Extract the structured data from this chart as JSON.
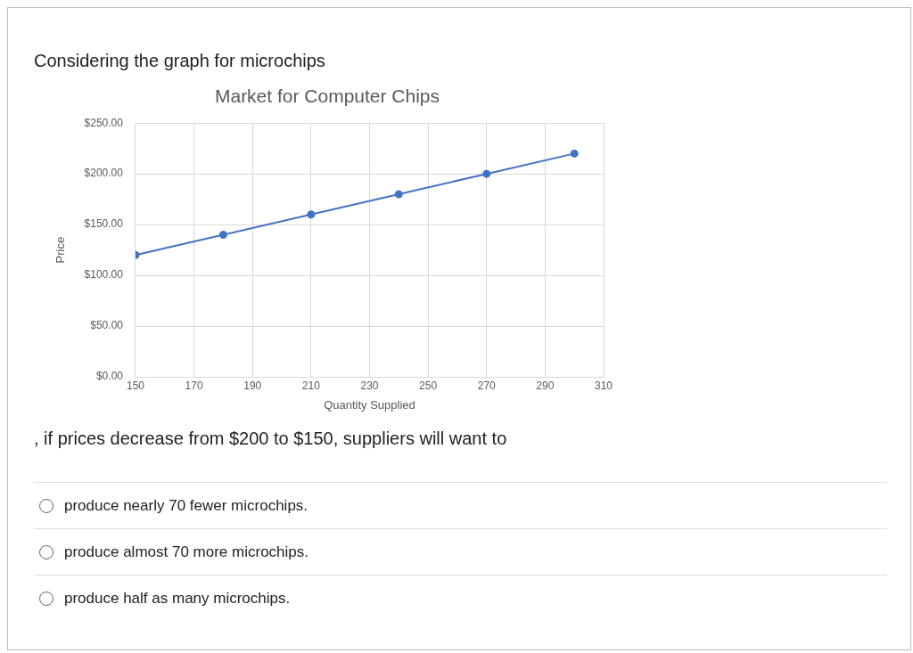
{
  "chart_data": {
    "type": "line",
    "title": "Market for Computer Chips",
    "xlabel": "Quantity Supplied",
    "ylabel": "Price",
    "x": [
      150,
      180,
      210,
      240,
      270,
      300
    ],
    "series": [
      {
        "color": "#4472c4",
        "values": [
          120,
          140,
          160,
          180,
          200,
          220
        ]
      }
    ],
    "xlim": [
      150,
      310
    ],
    "xticks": [
      150,
      170,
      190,
      210,
      230,
      250,
      270,
      290,
      310
    ],
    "ylim": [
      0,
      250
    ],
    "yticks": [
      {
        "value": 0,
        "label": "$0.00"
      },
      {
        "value": 50,
        "label": "$50.00"
      },
      {
        "value": 100,
        "label": "$100.00"
      },
      {
        "value": 150,
        "label": "$150.00"
      },
      {
        "value": 200,
        "label": "$200.00"
      },
      {
        "value": 250,
        "label": "$250.00"
      }
    ],
    "grid": true,
    "legend": false,
    "marker": "circle",
    "line_style": "solid",
    "annotations": [
      "Considering the graph for microchips",
      ", if prices decrease from $200 to $150, suppliers will want to",
      "produce nearly 70 fewer microchips.",
      "produce almost 70 more microchips.",
      "produce half as many microchips."
    ]
  }
}
